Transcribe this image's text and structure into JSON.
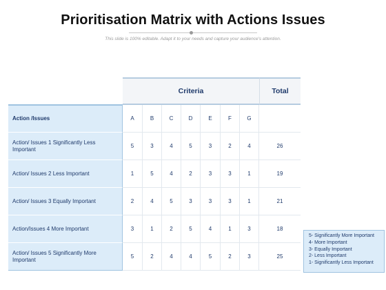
{
  "title": "Prioritisation Matrix with Actions Issues",
  "subtitle": "This slide is 100% editable. Adapt it to your needs and capture your audience's attention.",
  "table": {
    "criteria_header": "Criteria",
    "total_header": "Total",
    "row_header": "Action /Issues",
    "columns": [
      "A",
      "B",
      "C",
      "D",
      "E",
      "F",
      "G"
    ],
    "rows": [
      {
        "label": "Action/ Issues 1 Significantly Less Important",
        "values": [
          "5",
          "3",
          "4",
          "5",
          "3",
          "2",
          "4"
        ],
        "total": "26"
      },
      {
        "label": "Action/ Issues 2 Less Important",
        "values": [
          "1",
          "5",
          "4",
          "2",
          "3",
          "3",
          "1"
        ],
        "total": "19"
      },
      {
        "label": "Action/ Issues 3 Equally Important",
        "values": [
          "2",
          "4",
          "5",
          "3",
          "3",
          "3",
          "1"
        ],
        "total": "21"
      },
      {
        "label": "Action/Issues 4 More Important",
        "values": [
          "3",
          "1",
          "2",
          "5",
          "4",
          "1",
          "3"
        ],
        "total": "18"
      },
      {
        "label": "Action/ Issues 5 Significantly More Important",
        "values": [
          "5",
          "2",
          "4",
          "4",
          "5",
          "2",
          "3"
        ],
        "total": "25"
      }
    ]
  },
  "legend": [
    "5- Significantly More Important",
    "4- More Important",
    "3- Equally Important",
    "2- Less Important",
    "1- Significantly Less Important"
  ]
}
